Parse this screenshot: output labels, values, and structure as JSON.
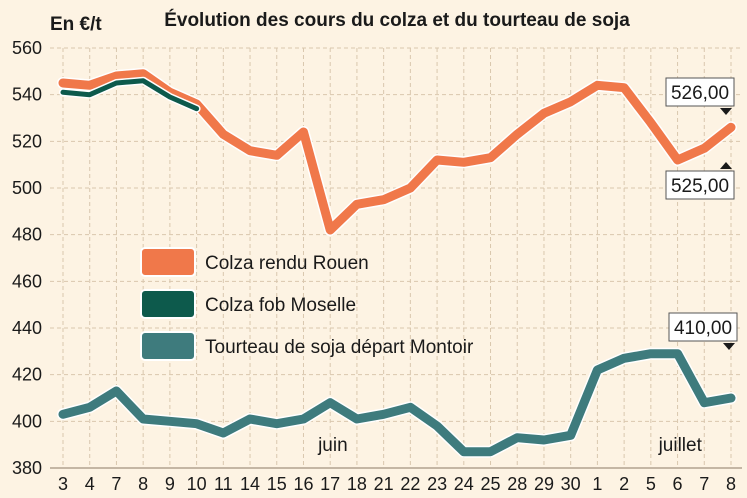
{
  "chart_data": {
    "type": "line",
    "title": "Évolution des cours du colza et du tourteau de soja",
    "ylabel": "En €/t",
    "ylim": [
      380,
      560
    ],
    "yticks": [
      380,
      400,
      420,
      440,
      460,
      480,
      500,
      520,
      540,
      560
    ],
    "categories": [
      "3",
      "4",
      "7",
      "8",
      "9",
      "10",
      "11",
      "14",
      "15",
      "16",
      "17",
      "18",
      "21",
      "22",
      "23",
      "24",
      "25",
      "28",
      "29",
      "30",
      "1",
      "2",
      "5",
      "6",
      "7",
      "8"
    ],
    "month_labels": [
      {
        "text": "juin",
        "after_index": 10
      },
      {
        "text": "juillet",
        "after_index": 23
      }
    ],
    "grid": true,
    "legend_position": "center-left",
    "series": [
      {
        "name": "Colza rendu Rouen",
        "color": "#f0784a",
        "values": [
          545,
          544,
          548,
          549,
          541,
          536,
          523,
          516,
          514,
          524,
          482,
          493,
          495,
          500,
          512,
          511,
          513,
          523,
          532,
          537,
          544,
          543,
          528,
          512,
          517,
          526
        ]
      },
      {
        "name": "Colza fob Moselle",
        "color": "#0d5a4c",
        "values": [
          541,
          540,
          545,
          546,
          539,
          534,
          null,
          null,
          null,
          null,
          null,
          null,
          null,
          null,
          null,
          null,
          null,
          null,
          null,
          null,
          null,
          null,
          null,
          null,
          null,
          525
        ]
      },
      {
        "name": "Tourteau de soja départ Montoir",
        "color": "#3e7b7d",
        "values": [
          403,
          406,
          413,
          401,
          400,
          399,
          395,
          401,
          399,
          401,
          408,
          401,
          403,
          406,
          398,
          387,
          387,
          393,
          392,
          394,
          422,
          427,
          429,
          429,
          408,
          410
        ]
      }
    ],
    "annotations": [
      {
        "text": "526,00",
        "series": "Colza rendu Rouen"
      },
      {
        "text": "525,00",
        "series": "Colza fob Moselle"
      },
      {
        "text": "410,00",
        "series": "Tourteau de soja départ Montoir"
      }
    ]
  }
}
